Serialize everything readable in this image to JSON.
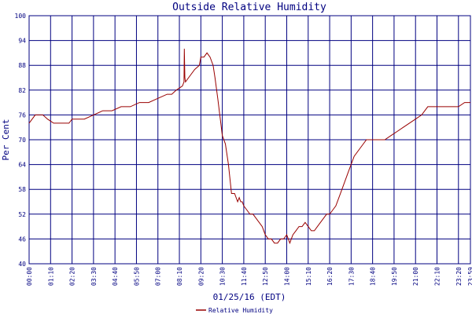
{
  "chart_data": {
    "type": "line",
    "title": "Outside Relative Humidity",
    "xlabel": "01/25/16 (EDT)",
    "ylabel": "Per Cent",
    "ylim": [
      40,
      100
    ],
    "yticks": [
      40,
      46,
      52,
      58,
      64,
      70,
      76,
      82,
      88,
      94,
      100
    ],
    "xtick_labels": [
      "00:00",
      "01:10",
      "02:20",
      "03:30",
      "04:40",
      "05:50",
      "07:00",
      "08:10",
      "09:20",
      "10:30",
      "11:40",
      "12:50",
      "14:00",
      "15:10",
      "16:20",
      "17:30",
      "18:40",
      "19:50",
      "21:00",
      "22:10",
      "23:20",
      "23:59"
    ],
    "grid": true,
    "legend_position": "bottom-center",
    "colors": {
      "series": "#990000",
      "grid": "#000080",
      "text": "#000080"
    },
    "series": [
      {
        "name": "Relative Humidity",
        "x": [
          0,
          10,
          20,
          45,
          60,
          80,
          100,
          130,
          140,
          150,
          160,
          180,
          210,
          240,
          270,
          300,
          330,
          360,
          390,
          420,
          450,
          465,
          480,
          500,
          505,
          506,
          508,
          510,
          520,
          540,
          555,
          560,
          570,
          580,
          590,
          600,
          606,
          615,
          625,
          630,
          640,
          650,
          660,
          670,
          680,
          685,
          690,
          695,
          700,
          710,
          720,
          730,
          740,
          750,
          760,
          770,
          780,
          790,
          800,
          810,
          820,
          830,
          840,
          850,
          855,
          860,
          870,
          880,
          890,
          900,
          910,
          920,
          930,
          940,
          950,
          960,
          970,
          980,
          990,
          1000,
          1020,
          1040,
          1060,
          1080,
          1100,
          1120,
          1140,
          1160,
          1180,
          1200,
          1220,
          1240,
          1260,
          1280,
          1300,
          1320,
          1340,
          1360,
          1380,
          1400,
          1420,
          1439
        ],
        "y": [
          74,
          75,
          76,
          76,
          75,
          74,
          74,
          74,
          75,
          75,
          75,
          75,
          76,
          77,
          77,
          78,
          78,
          79,
          79,
          80,
          81,
          81,
          82,
          83,
          84,
          92,
          85,
          84,
          85,
          87,
          88,
          90,
          90,
          91,
          90,
          88,
          85,
          80,
          74,
          71,
          69,
          64,
          57,
          57,
          55,
          56,
          55,
          55,
          54,
          53,
          52,
          52,
          51,
          50,
          49,
          47,
          46,
          46,
          45,
          45,
          46,
          46,
          47,
          45,
          46,
          47,
          48,
          49,
          49,
          50,
          49,
          48,
          48,
          49,
          50,
          51,
          52,
          52,
          53,
          54,
          58,
          62,
          66,
          68,
          70,
          70,
          70,
          70,
          71,
          72,
          73,
          74,
          75,
          76,
          78,
          78,
          78,
          78,
          78,
          78,
          79,
          79
        ]
      }
    ]
  }
}
